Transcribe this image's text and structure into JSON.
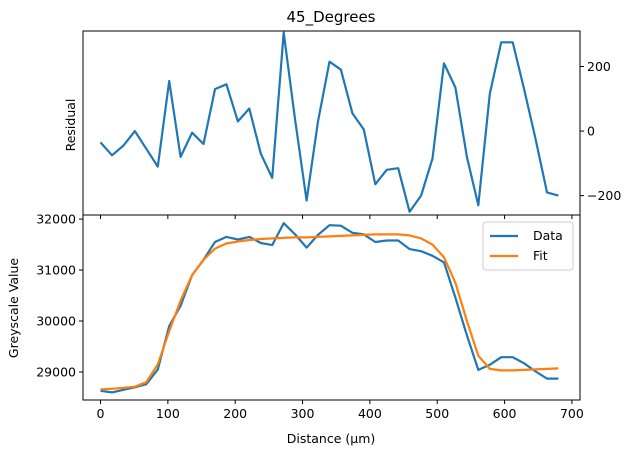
{
  "chart_data": [
    {
      "type": "line",
      "title": "45_Degrees",
      "xlabel": "",
      "ylabel": "Residual",
      "y_axis_side": "right",
      "xlim": [
        -26,
        712
      ],
      "ylim": [
        -260,
        310
      ],
      "yticks": [
        -200,
        0,
        200
      ],
      "series": [
        {
          "color": "#1f77b4",
          "x": [
            0,
            17,
            34,
            51,
            68,
            85,
            102,
            119,
            136,
            153,
            170,
            187,
            204,
            221,
            238,
            255,
            272,
            289,
            306,
            323,
            340,
            357,
            374,
            391,
            408,
            425,
            442,
            459,
            476,
            493,
            510,
            527,
            544,
            561,
            578,
            595,
            612,
            629,
            646,
            663,
            680
          ],
          "values": [
            -35,
            -75,
            -45,
            0,
            -55,
            -110,
            155,
            -80,
            -5,
            -40,
            130,
            145,
            30,
            70,
            -70,
            -145,
            305,
            35,
            -215,
            30,
            215,
            190,
            55,
            5,
            -165,
            -120,
            -115,
            -250,
            -200,
            -85,
            210,
            135,
            -80,
            -230,
            115,
            275,
            275,
            130,
            -25,
            -190,
            -200
          ]
        }
      ]
    },
    {
      "type": "line",
      "title": "",
      "xlabel": "Distance (μm)",
      "ylabel": "Greyscale Value",
      "xlim": [
        -26,
        712
      ],
      "ylim": [
        28450,
        32080
      ],
      "xticks": [
        0,
        100,
        200,
        300,
        400,
        500,
        600,
        700
      ],
      "yticks": [
        29000,
        30000,
        31000,
        32000
      ],
      "legend": "top-right",
      "series": [
        {
          "name": "Data",
          "color": "#1f77b4",
          "x": [
            0,
            17,
            34,
            51,
            68,
            85,
            102,
            119,
            136,
            153,
            170,
            187,
            204,
            221,
            238,
            255,
            272,
            289,
            306,
            323,
            340,
            357,
            374,
            391,
            408,
            425,
            442,
            459,
            476,
            493,
            510,
            527,
            544,
            561,
            578,
            595,
            612,
            629,
            646,
            663,
            680
          ],
          "values": [
            28630,
            28600,
            28650,
            28700,
            28760,
            29050,
            29900,
            30300,
            30900,
            31200,
            31550,
            31650,
            31600,
            31650,
            31530,
            31490,
            31920,
            31700,
            31440,
            31690,
            31880,
            31870,
            31730,
            31700,
            31550,
            31580,
            31580,
            31410,
            31370,
            31280,
            31150,
            30460,
            29720,
            29040,
            29140,
            29290,
            29290,
            29170,
            29010,
            28870,
            28870
          ]
        },
        {
          "name": "Fit",
          "color": "#ff7f0e",
          "x": [
            0,
            17,
            34,
            51,
            68,
            85,
            102,
            119,
            136,
            153,
            170,
            187,
            204,
            221,
            238,
            255,
            272,
            289,
            306,
            323,
            340,
            357,
            374,
            391,
            408,
            425,
            442,
            459,
            476,
            493,
            510,
            527,
            544,
            561,
            578,
            595,
            612,
            629,
            646,
            663,
            680
          ],
          "values": [
            28660,
            28670,
            28690,
            28710,
            28800,
            29150,
            29800,
            30400,
            30900,
            31200,
            31420,
            31520,
            31560,
            31590,
            31610,
            31620,
            31630,
            31640,
            31640,
            31650,
            31660,
            31670,
            31680,
            31690,
            31700,
            31700,
            31700,
            31680,
            31620,
            31500,
            31250,
            30750,
            30000,
            29320,
            29060,
            29030,
            29030,
            29040,
            29050,
            29060,
            29070
          ]
        }
      ]
    }
  ]
}
